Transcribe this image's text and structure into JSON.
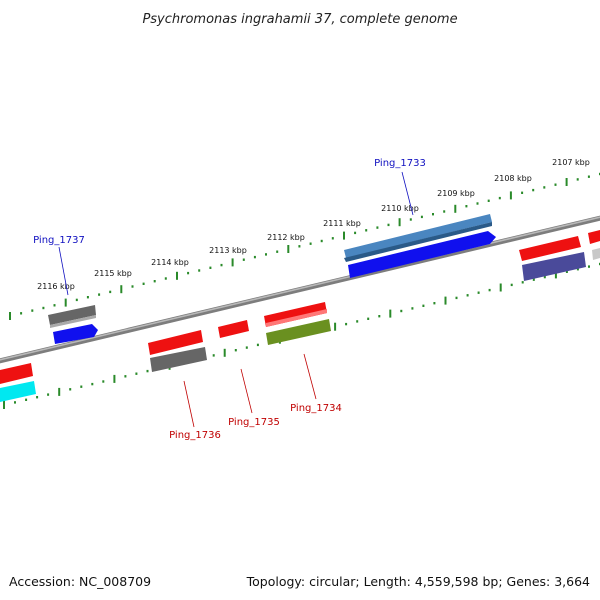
{
  "title": "Psychromonas ingrahamii 37, complete genome",
  "footer": {
    "accession": "Accession: NC_008709",
    "summary": "Topology: circular; Length: 4,559,598 bp; Genes: 3,664"
  },
  "scale_labels": [
    "2107 kbp",
    "2108 kbp",
    "2109 kbp",
    "2110 kbp",
    "2111 kbp",
    "2112 kbp",
    "2113 kbp",
    "2114 kbp",
    "2115 kbp",
    "2116 kbp"
  ],
  "gene_labels": [
    {
      "text": "Ping_1733",
      "strand": "forward"
    },
    {
      "text": "Ping_1737",
      "strand": "forward"
    },
    {
      "text": "Ping_1734",
      "strand": "reverse"
    },
    {
      "text": "Ping_1735",
      "strand": "reverse"
    },
    {
      "text": "Ping_1736",
      "strand": "reverse"
    }
  ],
  "colors": {
    "backbone": "#8a8a8a",
    "ticks": "#2a8a2a",
    "forward_label": "#1010c0",
    "reverse_label": "#c00000",
    "red_gene": "#ee1111",
    "blue_gene": "#1010ee",
    "steel_gene": "#4a86c0",
    "gray_gene": "#666666",
    "olive_gene": "#6a9020",
    "cyan_gene": "#00e8f0",
    "slate_gene": "#4a4a9a",
    "light_gene": "#c8c8c8"
  }
}
